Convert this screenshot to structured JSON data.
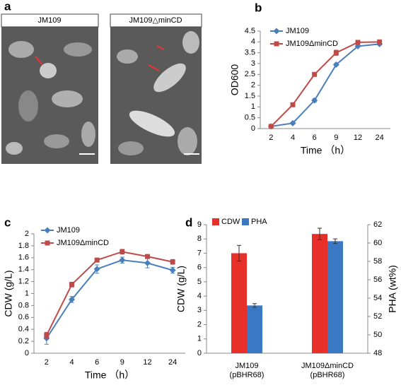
{
  "figure_a": {
    "panel_label": "a",
    "labels": [
      "JM109",
      "JM109△minCD"
    ]
  },
  "chart_data": [
    {
      "type": "line",
      "panel_label": "b",
      "xlabel": "Time （h）",
      "ylabel": "OD600",
      "categories": [
        "2",
        "4",
        "6",
        "9",
        "12",
        "24"
      ],
      "ylim": [
        0,
        4.5
      ],
      "yticks": [
        0,
        0.5,
        1,
        1.5,
        2,
        2.5,
        3,
        3.5,
        4,
        4.5
      ],
      "series": [
        {
          "name": "JM109",
          "color": "#4a7ebb",
          "marker": "diamond",
          "values": [
            0.1,
            0.25,
            1.3,
            2.95,
            3.8,
            3.9
          ],
          "errors": [
            0.02,
            0.05,
            0.08,
            0.05,
            0.05,
            0.05
          ]
        },
        {
          "name": "JM109ΔminCD",
          "color": "#be4b48",
          "marker": "square",
          "values": [
            0.1,
            1.1,
            2.5,
            3.5,
            3.98,
            4.0
          ],
          "errors": [
            0.02,
            0.08,
            0.05,
            0.12,
            0.05,
            0.05
          ]
        }
      ]
    },
    {
      "type": "line",
      "panel_label": "c",
      "xlabel": "Time （h）",
      "ylabel": "CDW (g/L)",
      "categories": [
        "2",
        "4",
        "6",
        "9",
        "12",
        "24"
      ],
      "ylim": [
        0,
        2
      ],
      "yticks": [
        0,
        0.2,
        0.4,
        0.6,
        0.8,
        1,
        1.2,
        1.4,
        1.6,
        1.8,
        2
      ],
      "series": [
        {
          "name": "JM109",
          "color": "#4a7ebb",
          "marker": "diamond",
          "values": [
            0.25,
            0.9,
            1.41,
            1.56,
            1.51,
            1.39
          ],
          "errors": [
            0.1,
            0.05,
            0.07,
            0.05,
            0.08,
            0.05
          ]
        },
        {
          "name": "JM109ΔminCD",
          "color": "#be4b48",
          "marker": "square",
          "values": [
            0.3,
            1.15,
            1.56,
            1.7,
            1.62,
            1.53
          ],
          "errors": [
            0.05,
            0.04,
            0.03,
            0.04,
            0.03,
            0.04
          ]
        }
      ]
    },
    {
      "type": "bar",
      "panel_label": "d",
      "ylabel": "CDW (g/L)",
      "y2label": "PHA (wt%)",
      "categories": [
        [
          "JM109",
          "(pBHR68)"
        ],
        [
          "JM109ΔminCD",
          "(pBHR68)"
        ]
      ],
      "ylim": [
        0,
        9
      ],
      "yticks": [
        0,
        1,
        2,
        3,
        4,
        5,
        6,
        7,
        8,
        9
      ],
      "y2lim": [
        48,
        62
      ],
      "y2ticks": [
        48,
        50,
        52,
        54,
        56,
        58,
        60,
        62
      ],
      "series": [
        {
          "name": "CDW",
          "color": "#e8302a",
          "values": [
            7.0,
            8.35
          ],
          "errors": [
            0.55,
            0.4
          ]
        },
        {
          "name": "PHA",
          "color": "#3b78c3",
          "axis": "y2",
          "values": [
            53.2,
            60.2
          ],
          "errors": [
            0.2,
            0.25
          ]
        }
      ]
    }
  ]
}
